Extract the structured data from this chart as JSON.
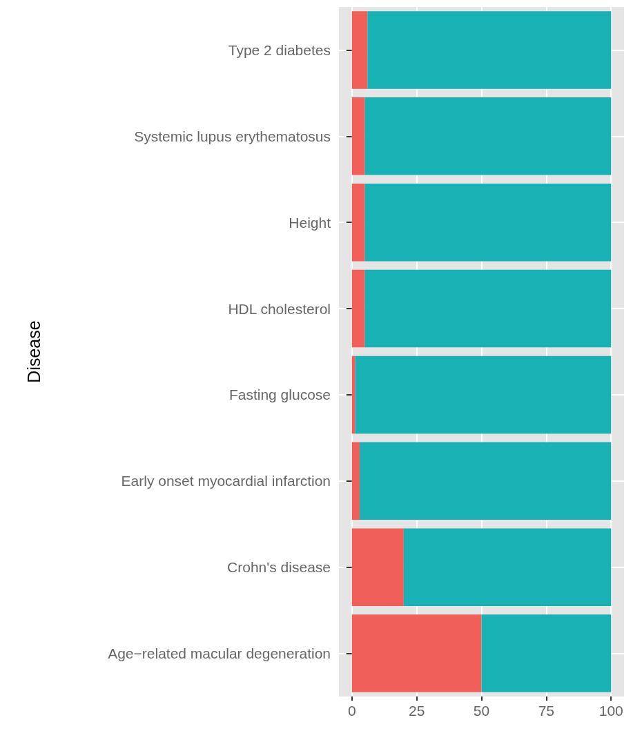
{
  "chart_data": {
    "type": "bar",
    "orientation": "horizontal",
    "stacked": true,
    "ylabel": "Disease",
    "categories": [
      "Type 2 diabetes",
      "Systemic lupus erythematosus",
      "Height",
      "HDL cholesterol",
      "Fasting glucose",
      "Early onset myocardial infarction",
      "Crohn's disease",
      "Age−related macular degeneration"
    ],
    "series": [
      {
        "color": "#f05f5a",
        "values": [
          6,
          5,
          5,
          5,
          1.3,
          3,
          20,
          50
        ]
      },
      {
        "color": "#19b2b4",
        "values": [
          94,
          95,
          95,
          95,
          98.7,
          97,
          80,
          50
        ]
      }
    ],
    "xlim": [
      -5,
      105
    ],
    "xticks": [
      0,
      25,
      50,
      75,
      100
    ],
    "grid": true
  }
}
